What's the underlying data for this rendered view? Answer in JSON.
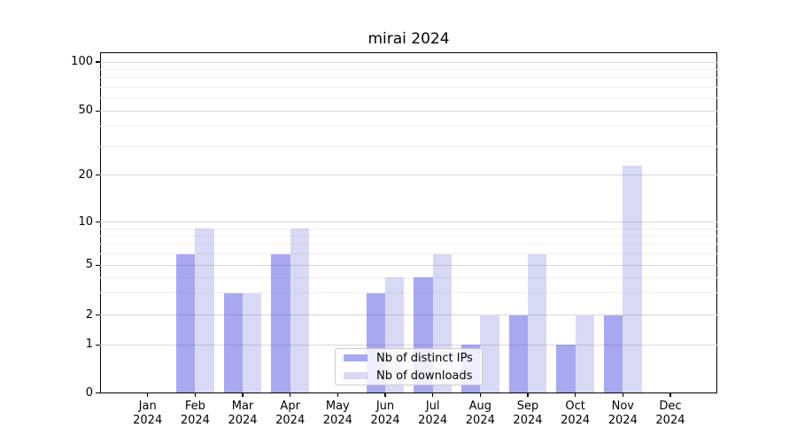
{
  "title": "mirai 2024",
  "chart_data": {
    "type": "bar",
    "title": "mirai 2024",
    "categories": [
      "Jan 2024",
      "Feb 2024",
      "Mar 2024",
      "Apr 2024",
      "May 2024",
      "Jun 2024",
      "Jul 2024",
      "Aug 2024",
      "Sep 2024",
      "Oct 2024",
      "Nov 2024",
      "Dec 2024"
    ],
    "series": [
      {
        "name": "Nb of distinct IPs",
        "color": "rgba(0,0,215,0.34)",
        "values": [
          0,
          6,
          3,
          6,
          0,
          3,
          4,
          1,
          2,
          1,
          2,
          0
        ]
      },
      {
        "name": "Nb of downloads",
        "color": "rgba(0,0,195,0.15)",
        "values": [
          0,
          9,
          3,
          9,
          0,
          4,
          6,
          2,
          6,
          2,
          23,
          0
        ]
      }
    ],
    "xlabel": "",
    "ylabel": "",
    "yscale": "symlog",
    "ylim": [
      0,
      115
    ],
    "y_major_ticks": [
      0,
      1,
      2,
      5,
      10,
      20,
      50,
      100
    ],
    "y_tick_labels": [
      "0",
      "1",
      "2",
      "5",
      "10",
      "20",
      "50",
      "100"
    ],
    "y_minor_gridlines": [
      3,
      4,
      6,
      7,
      8,
      9,
      30,
      40,
      60,
      70,
      80,
      90
    ],
    "grid": "horizontal",
    "legend_position": "lower center"
  },
  "colors": {
    "grid_major": "#d9d9d9",
    "grid_minor": "#f0f0f0",
    "axis": "#000000",
    "background": "#ffffff"
  }
}
